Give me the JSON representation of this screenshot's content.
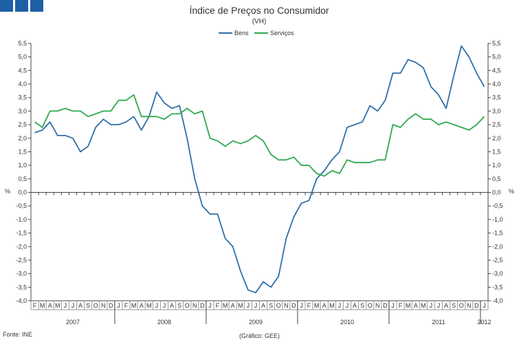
{
  "chart_data": {
    "type": "line",
    "title": "Índice de Preços no Consumidor",
    "subtitle": "(VH)",
    "ylabel_left": "%",
    "ylabel_right": "%",
    "ylim": [
      -4.0,
      5.5
    ],
    "y_ticks": [
      "5,5",
      "5,0",
      "4,5",
      "4,0",
      "3,5",
      "3,0",
      "2,5",
      "2,0",
      "1,5",
      "1,0",
      "0,5",
      "0,0",
      "-0,5",
      "-1,0",
      "-1,5",
      "-2,0",
      "-2,5",
      "-3,0",
      "-3,5",
      "-4,0"
    ],
    "y_tick_values": [
      5.5,
      5.0,
      4.5,
      4.0,
      3.5,
      3.0,
      2.5,
      2.0,
      1.5,
      1.0,
      0.5,
      0.0,
      -0.5,
      -1.0,
      -1.5,
      -2.0,
      -2.5,
      -3.0,
      -3.5,
      -4.0
    ],
    "month_labels": [
      "F",
      "M",
      "A",
      "M",
      "J",
      "J",
      "A",
      "S",
      "O",
      "N",
      "D",
      "J",
      "F",
      "M",
      "A",
      "M",
      "J",
      "J",
      "A",
      "S",
      "O",
      "N",
      "D",
      "J",
      "F",
      "M",
      "A",
      "M",
      "J",
      "J",
      "A",
      "S",
      "O",
      "N",
      "D",
      "J",
      "F",
      "M",
      "A",
      "M",
      "J",
      "J",
      "A",
      "S",
      "O",
      "N",
      "D",
      "J",
      "F",
      "M",
      "A",
      "M",
      "J",
      "J",
      "A",
      "S",
      "O",
      "N",
      "D",
      "J"
    ],
    "year_labels": [
      "2007",
      "2008",
      "2009",
      "2010",
      "2011",
      "2012"
    ],
    "year_label_month_index": [
      5,
      17,
      29,
      41,
      53,
      59
    ],
    "year_divider_after_index": [
      10,
      22,
      34,
      46,
      58
    ],
    "legend": "top-center",
    "series": [
      {
        "name": "Bens",
        "color": "#2f6fa8",
        "values": [
          2.2,
          2.3,
          2.6,
          2.1,
          2.1,
          2.0,
          1.5,
          1.7,
          2.4,
          2.7,
          2.5,
          2.5,
          2.6,
          2.8,
          2.3,
          2.8,
          3.7,
          3.3,
          3.1,
          3.2,
          2.0,
          0.5,
          -0.5,
          -0.8,
          -0.8,
          -1.7,
          -2.0,
          -2.9,
          -3.6,
          -3.7,
          -3.3,
          -3.5,
          -3.1,
          -1.7,
          -0.9,
          -0.4,
          -0.3,
          0.5,
          0.8,
          1.2,
          1.5,
          2.4,
          2.5,
          2.6,
          3.2,
          3.0,
          3.4,
          4.4,
          4.4,
          4.9,
          4.8,
          4.6,
          3.9,
          3.6,
          3.1,
          4.3,
          5.4,
          5.0,
          4.4,
          3.9
        ]
      },
      {
        "name": "Serviços",
        "color": "#2ea84e",
        "values": [
          2.6,
          2.4,
          3.0,
          3.0,
          3.1,
          3.0,
          3.0,
          2.8,
          2.9,
          3.0,
          3.0,
          3.4,
          3.4,
          3.6,
          2.8,
          2.8,
          2.8,
          2.7,
          2.9,
          2.9,
          3.1,
          2.9,
          3.0,
          2.0,
          1.9,
          1.7,
          1.9,
          1.8,
          1.9,
          2.1,
          1.9,
          1.4,
          1.2,
          1.2,
          1.3,
          1.0,
          1.0,
          0.7,
          0.6,
          0.8,
          0.7,
          1.2,
          1.1,
          1.1,
          1.1,
          1.2,
          1.2,
          2.5,
          2.4,
          2.7,
          2.9,
          2.7,
          2.7,
          2.5,
          2.6,
          2.5,
          2.4,
          2.3,
          2.5,
          2.8
        ]
      }
    ]
  },
  "footer": {
    "source": "Fonte: INE",
    "credit": "(Gráfico: GEE)"
  }
}
